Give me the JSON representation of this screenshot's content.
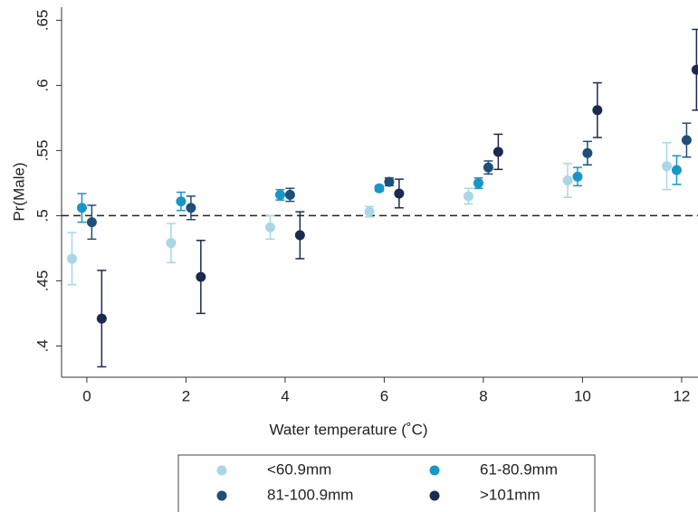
{
  "chart_data": {
    "type": "errorbar-scatter",
    "x_label": "Water temperature (˚C)",
    "y_label": "Pr(Male)",
    "xlim": [
      -0.51,
      12.33
    ],
    "ylim": [
      0.376,
      0.66
    ],
    "xticks": [
      0,
      2,
      4,
      6,
      8,
      10,
      12
    ],
    "yticks": [
      {
        "value": 0.4,
        "label": ".4"
      },
      {
        "value": 0.45,
        "label": ".45"
      },
      {
        "value": 0.5,
        "label": ".5"
      },
      {
        "value": 0.55,
        "label": ".55"
      },
      {
        "value": 0.6,
        "label": ".6"
      },
      {
        "value": 0.65,
        "label": ".65"
      }
    ],
    "reference_line": 0.5,
    "legend": "bottom",
    "series": [
      {
        "name": "<60.9mm",
        "color": "#a9d7e6",
        "x": [
          -0.3,
          1.7,
          3.7,
          5.7,
          7.7,
          9.7,
          11.7
        ],
        "values": [
          0.467,
          0.479,
          0.491,
          0.503,
          0.515,
          0.527,
          0.538
        ],
        "errors": [
          0.02,
          0.015,
          0.009,
          0.004,
          0.006,
          0.013,
          0.018
        ]
      },
      {
        "name": "61-80.9mm",
        "color": "#1a95c8",
        "x": [
          -0.1,
          1.9,
          3.9,
          5.9,
          7.9,
          9.9,
          11.9
        ],
        "values": [
          0.506,
          0.511,
          0.516,
          0.521,
          0.525,
          0.53,
          0.535
        ],
        "errors": [
          0.011,
          0.007,
          0.004,
          0.002,
          0.004,
          0.007,
          0.011
        ]
      },
      {
        "name": "81-100.9mm",
        "color": "#1f4e79",
        "x": [
          0.1,
          2.1,
          4.1,
          6.1,
          8.1,
          10.1,
          12.1
        ],
        "values": [
          0.495,
          0.506,
          0.516,
          0.526,
          0.537,
          0.548,
          0.558
        ],
        "errors": [
          0.013,
          0.009,
          0.005,
          0.003,
          0.005,
          0.009,
          0.013
        ]
      },
      {
        "name": ">101mm",
        "color": "#1b2a4e",
        "x": [
          0.3,
          2.3,
          4.3,
          6.3,
          8.3,
          10.3,
          12.3
        ],
        "values": [
          0.421,
          0.453,
          0.485,
          0.517,
          0.549,
          0.581,
          0.612
        ],
        "errors": [
          0.037,
          0.028,
          0.018,
          0.011,
          0.0135,
          0.021,
          0.031
        ]
      }
    ]
  }
}
